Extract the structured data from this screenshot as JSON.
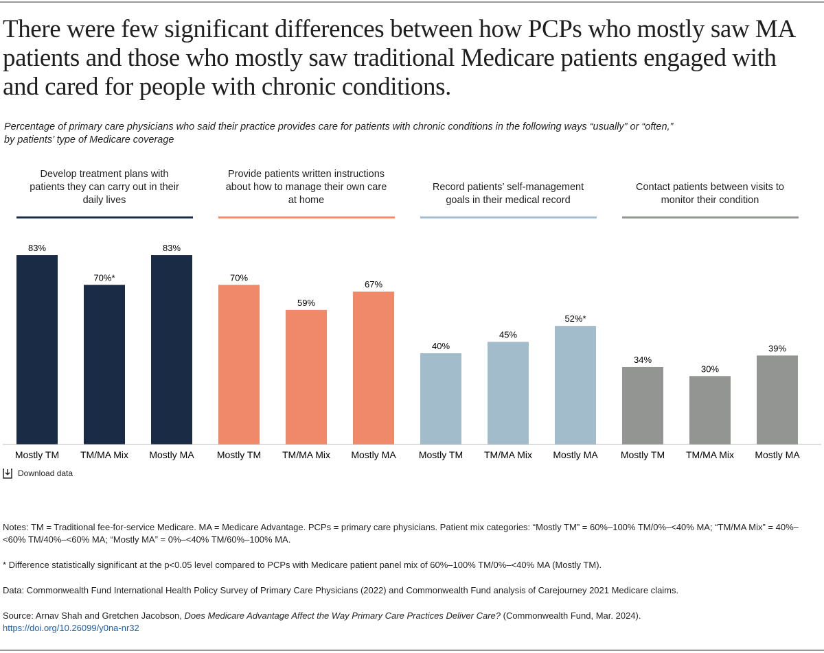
{
  "title_lines": [
    "There were few significant differences between how PCPs who mostly saw MA",
    "patients and those who mostly saw traditional Medicare patients engaged with",
    "and cared for people with chronic conditions."
  ],
  "subtitle_lines": [
    "Percentage of primary care physicians who said their practice provides care for patients with chronic conditions in the following ways “usually” or “often,”",
    "by patients’ type of Medicare coverage"
  ],
  "chart_data": [
    {
      "type": "bar",
      "title": "Develop treatment plans with patients they can carry out in their daily lives",
      "categories": [
        "Mostly TM",
        "TM/MA Mix",
        "Mostly MA"
      ],
      "values": [
        83,
        70,
        83
      ],
      "value_labels": [
        "83%",
        "70%*",
        "83%"
      ],
      "color": "#1a2b45"
    },
    {
      "type": "bar",
      "title": "Provide patients written instructions about how to manage their own care at home",
      "categories": [
        "Mostly TM",
        "TM/MA Mix",
        "Mostly MA"
      ],
      "values": [
        70,
        59,
        67
      ],
      "value_labels": [
        "70%",
        "59%",
        "67%"
      ],
      "color": "#f0896a"
    },
    {
      "type": "bar",
      "title": "Record patients’ self-management goals in their medical record",
      "categories": [
        "Mostly TM",
        "TM/MA Mix",
        "Mostly MA"
      ],
      "values": [
        40,
        45,
        52
      ],
      "value_labels": [
        "40%",
        "45%",
        "52%*"
      ],
      "color": "#a3bccb"
    },
    {
      "type": "bar",
      "title": "Contact patients between visits to monitor their condition",
      "categories": [
        "Mostly TM",
        "TM/MA Mix",
        "Mostly MA"
      ],
      "values": [
        34,
        30,
        39
      ],
      "value_labels": [
        "34%",
        "30%",
        "39%"
      ],
      "color": "#929591"
    }
  ],
  "download": "Download data",
  "notes": "Notes: TM = Traditional fee-for-service Medicare. MA = Medicare Advantage. PCPs = primary care physicians. Patient mix categories: “Mostly TM” = 60%–100% TM/0%–<40% MA; “TM/MA Mix” = 40%–<60% TM/40%–<60% MA; “Mostly MA” = 0%–<40% TM/60%–100% MA.",
  "significance": "* Difference statistically significant at the p<0.05 level compared to PCPs with Medicare patient panel mix of 60%–100% TM/0%–<40% MA (Mostly TM).",
  "data_note": "Data: Commonwealth Fund International Health Policy Survey of Primary Care Physicians (2022) and Commonwealth Fund analysis of Carejourney 2021 Medicare claims.",
  "source": {
    "prefix": "Source: Arnav Shah and Gretchen Jacobson, ",
    "title": "Does Medicare Advantage Affect the Way Primary Care Practices Deliver Care?",
    "suffix": " (Commonwealth Fund, Mar. 2024).",
    "link": "https://doi.org/10.26099/y0na-nr32"
  }
}
